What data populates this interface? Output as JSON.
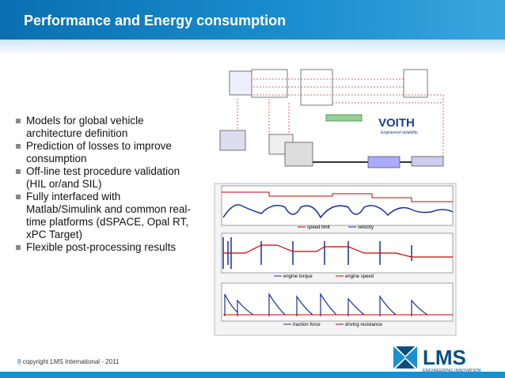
{
  "header": {
    "title": "Performance and Energy consumption"
  },
  "bullets": [
    "Models for global vehicle architecture definition",
    "Prediction of losses to improve consumption",
    "Off-line test procedure validation (HIL or/and SIL)",
    "Fully interfaced with Matlab/Simulink and common real-time platforms (dSPACE, Opal RT, xPC Target)",
    "Flexible post-processing results"
  ],
  "diagram": {
    "logo": "VOITH",
    "tagline": "Engineered reliability."
  },
  "plots": [
    {
      "legend": [
        "speed limit",
        "velocity"
      ]
    },
    {
      "legend": [
        "engine torque",
        "engine speed"
      ]
    },
    {
      "legend": [
        "traction force",
        "driving resistance"
      ]
    }
  ],
  "footer": {
    "page": "8",
    "text": "copyright LMS International - 2011"
  },
  "logo": {
    "name": "LMS",
    "tagline": "ENGINEERING INNOVATION"
  }
}
